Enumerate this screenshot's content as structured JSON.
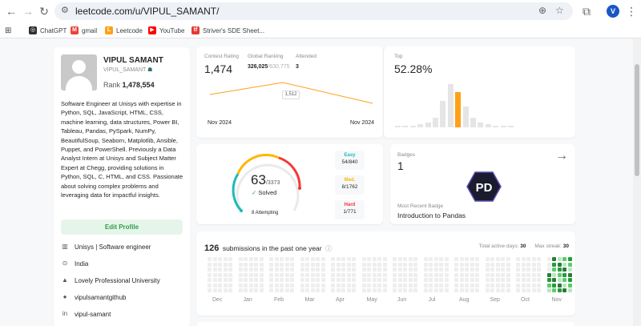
{
  "browser": {
    "url": "leetcode.com/u/VIPUL_SAMANT/",
    "profile_initial": "V",
    "bookmarks": [
      {
        "label": "ChatGPT",
        "color": "#2f2f2f",
        "glyph": "◎"
      },
      {
        "label": "gmail",
        "color": "#ea4335",
        "glyph": "M"
      },
      {
        "label": "Leetcode",
        "color": "#ffa116",
        "glyph": "L"
      },
      {
        "label": "YouTube",
        "color": "#ff0000",
        "glyph": "▶"
      },
      {
        "label": "Striver's SDE Sheet...",
        "color": "#e53935",
        "glyph": "tf"
      }
    ]
  },
  "profile": {
    "name": "VIPUL SAMANT",
    "username": "VIPUL_SAMANT",
    "rank_label": "Rank",
    "rank_value": "1,478,554",
    "bio": "Software Engineer at Unisys with expertise in Python, SQL, JavaScript, HTML, CSS, machine learning, data structures, Power BI, Tableau, Pandas, PySpark, NumPy, BeautifulSoup, Seaborn, Matplotlib, Ansible, Puppet, and PowerShell. Previously a Data Analyst Intern at Unisys and Subject Matter Expert at Chegg, providing solutions in Python, SQL, C, HTML, and CSS. Passionate about solving complex problems and leveraging data for impactful insights.",
    "edit_label": "Edit Profile",
    "info": [
      {
        "icon": "building-icon",
        "glyph": "▥",
        "text": "Unisys | Software engineer"
      },
      {
        "icon": "location-icon",
        "glyph": "⊙",
        "text": "India"
      },
      {
        "icon": "graduation-cap-icon",
        "glyph": "▲",
        "text": "Lovely Professional University"
      },
      {
        "icon": "github-icon",
        "glyph": "●",
        "text": "vipulsamantgithub"
      },
      {
        "icon": "linkedin-icon",
        "glyph": "in",
        "text": "vipul-samant"
      }
    ]
  },
  "contest": {
    "rating_label": "Contest Rating",
    "rating_value": "1,474",
    "global_label": "Global Ranking",
    "global_value": "326,025",
    "global_total": "/630,775",
    "attended_label": "Attended",
    "attended_value": "3",
    "tooltip": "1,512",
    "x_start": "Nov 2024",
    "x_end": "Nov 2024",
    "line_color": "#ffa116"
  },
  "top": {
    "label": "Top",
    "value": "52.28%",
    "bars": [
      0.02,
      0.03,
      0.04,
      0.06,
      0.1,
      0.2,
      0.55,
      0.9,
      0.73,
      0.43,
      0.2,
      0.1,
      0.06,
      0.04,
      0.03,
      0.02
    ],
    "highlight_index": 8,
    "highlight_color": "#ffa116",
    "bar_color": "#e5e5e5"
  },
  "solved": {
    "count": "63",
    "total": "/3373",
    "solved_label": "Solved",
    "attempting": "8 Attempting",
    "difficulties": [
      {
        "name": "Easy",
        "count": "54/840",
        "color": "#1cbaba"
      },
      {
        "name": "Med.",
        "count": "8/1762",
        "color": "#ffb700"
      },
      {
        "name": "Hard",
        "count": "1/771",
        "color": "#f63737"
      }
    ]
  },
  "badges": {
    "label": "Badges",
    "count": "1",
    "recent_label": "Most Recent Badge",
    "recent_name": "Introduction to Pandas",
    "logo_text": "PD"
  },
  "submissions": {
    "count": "126",
    "title_rest": "submissions in the past one year",
    "active_days_label": "Total active days:",
    "active_days": "30",
    "max_streak_label": "Max streak:",
    "max_streak": "30",
    "months": [
      "Dec",
      "Jan",
      "Feb",
      "Mar",
      "Apr",
      "May",
      "Jun",
      "Jul",
      "Aug",
      "Sep",
      "Oct",
      "Nov"
    ],
    "active_month_index": 11
  }
}
